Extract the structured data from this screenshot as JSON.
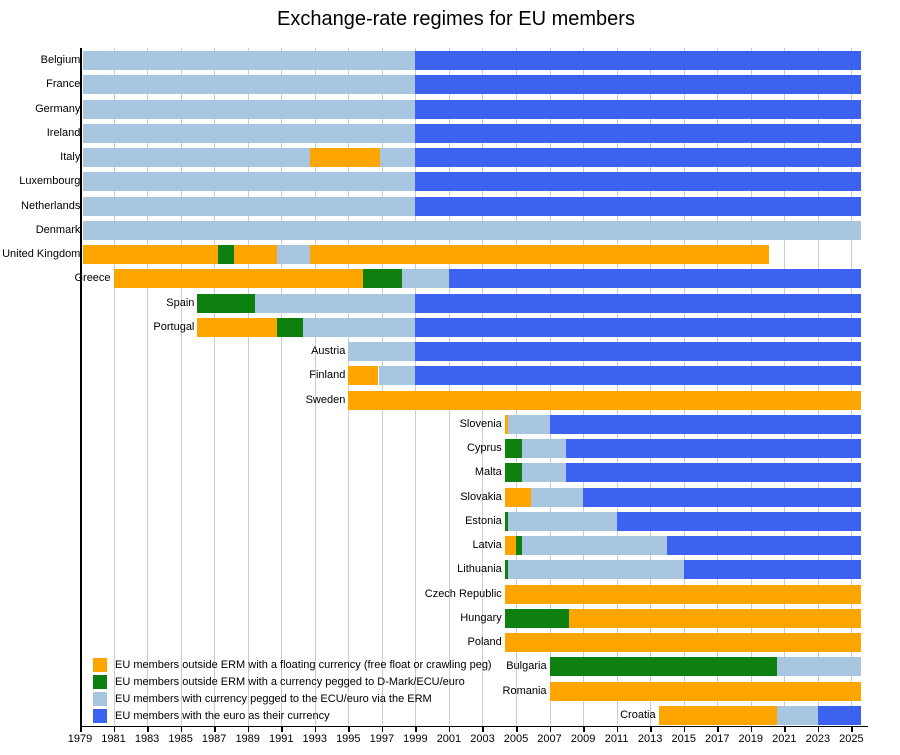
{
  "chart_data": {
    "type": "bar",
    "subtype": "horizontal-timeline-gantt",
    "title": "Exchange-rate regimes for EU members",
    "xlabel": "",
    "ylabel": "",
    "xlim": [
      1979,
      2026.2
    ],
    "end_of_data": 2025.6,
    "grid": true,
    "legend_position": "inside-bottom-left",
    "x_ticks": [
      1979,
      1981,
      1983,
      1985,
      1987,
      1989,
      1991,
      1993,
      1995,
      1997,
      1999,
      2001,
      2003,
      2005,
      2007,
      2009,
      2011,
      2013,
      2015,
      2017,
      2019,
      2021,
      2023,
      2025
    ],
    "regimes": {
      "float": {
        "label": "EU members outside ERM with a floating currency (free float or crawling peg)",
        "color": "#FFA500"
      },
      "peg": {
        "label": "EU members outside ERM with a currency pegged to D-Mark/ECU/euro",
        "color": "#0E8010"
      },
      "erm": {
        "label": "EU members with currency pegged to the ECU/euro via the ERM",
        "color": "#A9C6E1"
      },
      "euro": {
        "label": "EU members with the euro as their currency",
        "color": "#3B63EF"
      }
    },
    "legend_order": [
      "float",
      "peg",
      "erm",
      "euro"
    ],
    "rows": [
      {
        "country": "Belgium",
        "segments": [
          [
            "erm",
            1979.2,
            1999
          ],
          [
            "euro",
            1999,
            2025.6
          ]
        ]
      },
      {
        "country": "France",
        "segments": [
          [
            "erm",
            1979.2,
            1999
          ],
          [
            "euro",
            1999,
            2025.6
          ]
        ]
      },
      {
        "country": "Germany",
        "segments": [
          [
            "erm",
            1979.2,
            1999
          ],
          [
            "euro",
            1999,
            2025.6
          ]
        ]
      },
      {
        "country": "Ireland",
        "segments": [
          [
            "erm",
            1979.2,
            1999
          ],
          [
            "euro",
            1999,
            2025.6
          ]
        ]
      },
      {
        "country": "Italy",
        "segments": [
          [
            "erm",
            1979.2,
            1992.7
          ],
          [
            "float",
            1992.7,
            1996.9
          ],
          [
            "erm",
            1996.9,
            1999
          ],
          [
            "euro",
            1999,
            2025.6
          ]
        ]
      },
      {
        "country": "Luxembourg",
        "segments": [
          [
            "erm",
            1979.2,
            1999
          ],
          [
            "euro",
            1999,
            2025.6
          ]
        ]
      },
      {
        "country": "Netherlands",
        "segments": [
          [
            "erm",
            1979.2,
            1999
          ],
          [
            "euro",
            1999,
            2025.6
          ]
        ]
      },
      {
        "country": "Denmark",
        "segments": [
          [
            "erm",
            1979.2,
            2025.6
          ]
        ]
      },
      {
        "country": "United Kingdom",
        "segments": [
          [
            "float",
            1979.2,
            1987.2
          ],
          [
            "peg",
            1987.2,
            1988.2
          ],
          [
            "float",
            1988.2,
            1990.75
          ],
          [
            "erm",
            1990.75,
            1992.7
          ],
          [
            "float",
            1992.7,
            2020.1
          ]
        ]
      },
      {
        "country": "Greece",
        "segments": [
          [
            "float",
            1981,
            1995.9
          ],
          [
            "peg",
            1995.9,
            1998.2
          ],
          [
            "erm",
            1998.2,
            2001
          ],
          [
            "euro",
            2001,
            2025.6
          ]
        ]
      },
      {
        "country": "Spain",
        "segments": [
          [
            "peg",
            1986,
            1989.45
          ],
          [
            "erm",
            1989.45,
            1999
          ],
          [
            "euro",
            1999,
            2025.6
          ]
        ]
      },
      {
        "country": "Portugal",
        "segments": [
          [
            "float",
            1986,
            1990.75
          ],
          [
            "peg",
            1990.75,
            1992.3
          ],
          [
            "erm",
            1992.3,
            1999
          ],
          [
            "euro",
            1999,
            2025.6
          ]
        ]
      },
      {
        "country": "Austria",
        "segments": [
          [
            "erm",
            1995,
            1999
          ],
          [
            "euro",
            1999,
            2025.6
          ]
        ]
      },
      {
        "country": "Finland",
        "segments": [
          [
            "float",
            1995,
            1996.8
          ],
          [
            "erm",
            1996.8,
            1999
          ],
          [
            "euro",
            1999,
            2025.6
          ]
        ]
      },
      {
        "country": "Sweden",
        "segments": [
          [
            "float",
            1995,
            2025.6
          ]
        ]
      },
      {
        "country": "Slovenia",
        "segments": [
          [
            "float",
            2004.33,
            2004.55
          ],
          [
            "erm",
            2004.55,
            2007
          ],
          [
            "euro",
            2007,
            2025.6
          ]
        ]
      },
      {
        "country": "Cyprus",
        "segments": [
          [
            "peg",
            2004.33,
            2005.35
          ],
          [
            "erm",
            2005.35,
            2008
          ],
          [
            "euro",
            2008,
            2025.6
          ]
        ]
      },
      {
        "country": "Malta",
        "segments": [
          [
            "peg",
            2004.33,
            2005.35
          ],
          [
            "erm",
            2005.35,
            2008
          ],
          [
            "euro",
            2008,
            2025.6
          ]
        ]
      },
      {
        "country": "Slovakia",
        "segments": [
          [
            "float",
            2004.33,
            2005.9
          ],
          [
            "erm",
            2005.9,
            2009
          ],
          [
            "euro",
            2009,
            2025.6
          ]
        ]
      },
      {
        "country": "Estonia",
        "segments": [
          [
            "peg",
            2004.33,
            2004.55
          ],
          [
            "erm",
            2004.55,
            2011
          ],
          [
            "euro",
            2011,
            2025.6
          ]
        ]
      },
      {
        "country": "Latvia",
        "segments": [
          [
            "float",
            2004.33,
            2005.0
          ],
          [
            "peg",
            2005.0,
            2005.37
          ],
          [
            "erm",
            2005.37,
            2014
          ],
          [
            "euro",
            2014,
            2025.6
          ]
        ]
      },
      {
        "country": "Lithuania",
        "segments": [
          [
            "peg",
            2004.33,
            2004.55
          ],
          [
            "erm",
            2004.55,
            2015
          ],
          [
            "euro",
            2015,
            2025.6
          ]
        ]
      },
      {
        "country": "Czech Republic",
        "segments": [
          [
            "float",
            2004.33,
            2025.6
          ]
        ]
      },
      {
        "country": "Hungary",
        "segments": [
          [
            "peg",
            2004.33,
            2008.15
          ],
          [
            "float",
            2008.15,
            2025.6
          ]
        ]
      },
      {
        "country": "Poland",
        "segments": [
          [
            "float",
            2004.33,
            2025.6
          ]
        ]
      },
      {
        "country": "Bulgaria",
        "segments": [
          [
            "peg",
            2007,
            2020.55
          ],
          [
            "erm",
            2020.55,
            2025.6
          ]
        ]
      },
      {
        "country": "Romania",
        "segments": [
          [
            "float",
            2007,
            2025.6
          ]
        ]
      },
      {
        "country": "Croatia",
        "segments": [
          [
            "float",
            2013.5,
            2020.55
          ],
          [
            "erm",
            2020.55,
            2023
          ],
          [
            "euro",
            2023,
            2025.6
          ]
        ]
      }
    ]
  }
}
